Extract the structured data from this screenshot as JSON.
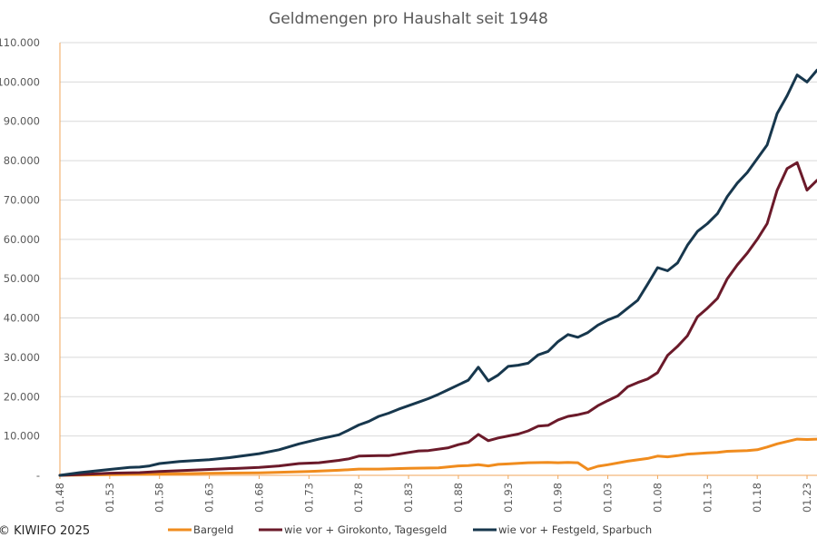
{
  "chart_data": {
    "type": "line",
    "title": "Geldmengen pro Haushalt seit 1948",
    "xlabel": "",
    "ylabel": "",
    "ylim": [
      0,
      110000
    ],
    "y_ticks": [
      0,
      10000,
      20000,
      30000,
      40000,
      50000,
      60000,
      70000,
      80000,
      90000,
      100000,
      110000
    ],
    "y_tick_labels": [
      "-",
      "10.000",
      "20.000",
      "30.000",
      "40.000",
      "50.000",
      "60.000",
      "70.000",
      "80.000",
      "90.000",
      "100.000",
      "110.000"
    ],
    "x_ticks": [
      1948,
      1953,
      1958,
      1963,
      1968,
      1973,
      1978,
      1983,
      1988,
      1993,
      1998,
      2003,
      2008,
      2013,
      2018,
      2023
    ],
    "x_tick_labels": [
      "01.48",
      "01.53",
      "01.58",
      "01.63",
      "01.68",
      "01.73",
      "01.78",
      "01.83",
      "01.88",
      "01.93",
      "01.98",
      "01.03",
      "01.08",
      "01.13",
      "01.18",
      "01.23"
    ],
    "xlim": [
      1948,
      2024
    ],
    "grid": true,
    "legend_position": "bottom",
    "series": [
      {
        "name": "Bargeld",
        "color": "#F08C1E",
        "points": [
          [
            1948,
            0
          ],
          [
            1953,
            150
          ],
          [
            1958,
            350
          ],
          [
            1963,
            500
          ],
          [
            1968,
            650
          ],
          [
            1973,
            1000
          ],
          [
            1976,
            1300
          ],
          [
            1978,
            1600
          ],
          [
            1980,
            1600
          ],
          [
            1983,
            1800
          ],
          [
            1986,
            1900
          ],
          [
            1988,
            2400
          ],
          [
            1989,
            2500
          ],
          [
            1990,
            2700
          ],
          [
            1991,
            2400
          ],
          [
            1992,
            2800
          ],
          [
            1993,
            2900
          ],
          [
            1995,
            3200
          ],
          [
            1997,
            3300
          ],
          [
            1998,
            3200
          ],
          [
            1999,
            3300
          ],
          [
            2000,
            3200
          ],
          [
            2001,
            1500
          ],
          [
            2002,
            2300
          ],
          [
            2003,
            2700
          ],
          [
            2005,
            3600
          ],
          [
            2007,
            4300
          ],
          [
            2008,
            4900
          ],
          [
            2009,
            4700
          ],
          [
            2010,
            5000
          ],
          [
            2011,
            5400
          ],
          [
            2013,
            5700
          ],
          [
            2014,
            5800
          ],
          [
            2015,
            6100
          ],
          [
            2017,
            6300
          ],
          [
            2018,
            6500
          ],
          [
            2019,
            7200
          ],
          [
            2020,
            8000
          ],
          [
            2021,
            8600
          ],
          [
            2022,
            9200
          ],
          [
            2023,
            9100
          ],
          [
            2024,
            9200
          ]
        ]
      },
      {
        "name": "wie vor + Girokonto, Tagesgeld",
        "color": "#6B1A2A",
        "points": [
          [
            1948,
            0
          ],
          [
            1950,
            200
          ],
          [
            1953,
            550
          ],
          [
            1956,
            700
          ],
          [
            1958,
            1000
          ],
          [
            1963,
            1500
          ],
          [
            1966,
            1800
          ],
          [
            1968,
            2000
          ],
          [
            1970,
            2400
          ],
          [
            1972,
            3000
          ],
          [
            1974,
            3200
          ],
          [
            1976,
            3800
          ],
          [
            1977,
            4200
          ],
          [
            1978,
            4900
          ],
          [
            1980,
            5000
          ],
          [
            1981,
            5000
          ],
          [
            1983,
            5800
          ],
          [
            1984,
            6200
          ],
          [
            1985,
            6300
          ],
          [
            1987,
            7000
          ],
          [
            1988,
            7800
          ],
          [
            1989,
            8400
          ],
          [
            1990,
            10400
          ],
          [
            1991,
            8800
          ],
          [
            1992,
            9500
          ],
          [
            1993,
            10000
          ],
          [
            1994,
            10500
          ],
          [
            1995,
            11300
          ],
          [
            1996,
            12500
          ],
          [
            1997,
            12700
          ],
          [
            1998,
            14100
          ],
          [
            1999,
            15000
          ],
          [
            2000,
            15400
          ],
          [
            2001,
            16000
          ],
          [
            2002,
            17700
          ],
          [
            2003,
            19000
          ],
          [
            2004,
            20200
          ],
          [
            2005,
            22500
          ],
          [
            2006,
            23600
          ],
          [
            2007,
            24500
          ],
          [
            2008,
            26100
          ],
          [
            2009,
            30500
          ],
          [
            2010,
            32800
          ],
          [
            2011,
            35500
          ],
          [
            2012,
            40300
          ],
          [
            2013,
            42500
          ],
          [
            2014,
            45000
          ],
          [
            2015,
            50000
          ],
          [
            2016,
            53500
          ],
          [
            2017,
            56500
          ],
          [
            2018,
            60000
          ],
          [
            2019,
            64000
          ],
          [
            2020,
            72500
          ],
          [
            2021,
            78000
          ],
          [
            2022,
            79500
          ],
          [
            2023,
            72500
          ],
          [
            2024,
            75000
          ]
        ]
      },
      {
        "name": "wie vor + Festgeld, Sparbuch",
        "color": "#17374D",
        "points": [
          [
            1948,
            0
          ],
          [
            1950,
            700
          ],
          [
            1953,
            1500
          ],
          [
            1955,
            2000
          ],
          [
            1956,
            2100
          ],
          [
            1957,
            2400
          ],
          [
            1958,
            3000
          ],
          [
            1960,
            3500
          ],
          [
            1963,
            4000
          ],
          [
            1965,
            4500
          ],
          [
            1968,
            5500
          ],
          [
            1970,
            6500
          ],
          [
            1972,
            8000
          ],
          [
            1974,
            9200
          ],
          [
            1976,
            10300
          ],
          [
            1977,
            11500
          ],
          [
            1978,
            12800
          ],
          [
            1979,
            13700
          ],
          [
            1980,
            15000
          ],
          [
            1981,
            15800
          ],
          [
            1982,
            16800
          ],
          [
            1983,
            17700
          ],
          [
            1984,
            18600
          ],
          [
            1985,
            19500
          ],
          [
            1986,
            20600
          ],
          [
            1987,
            21800
          ],
          [
            1988,
            23000
          ],
          [
            1989,
            24200
          ],
          [
            1990,
            27500
          ],
          [
            1991,
            24000
          ],
          [
            1992,
            25500
          ],
          [
            1993,
            27700
          ],
          [
            1994,
            28000
          ],
          [
            1995,
            28500
          ],
          [
            1996,
            30600
          ],
          [
            1997,
            31500
          ],
          [
            1998,
            34000
          ],
          [
            1999,
            35800
          ],
          [
            2000,
            35100
          ],
          [
            2001,
            36300
          ],
          [
            2002,
            38200
          ],
          [
            2003,
            39500
          ],
          [
            2004,
            40500
          ],
          [
            2005,
            42500
          ],
          [
            2006,
            44500
          ],
          [
            2007,
            48600
          ],
          [
            2008,
            52800
          ],
          [
            2009,
            52000
          ],
          [
            2010,
            54000
          ],
          [
            2011,
            58500
          ],
          [
            2012,
            62000
          ],
          [
            2013,
            64000
          ],
          [
            2014,
            66500
          ],
          [
            2015,
            70900
          ],
          [
            2016,
            74300
          ],
          [
            2017,
            77000
          ],
          [
            2018,
            80500
          ],
          [
            2019,
            84000
          ],
          [
            2020,
            92000
          ],
          [
            2021,
            96500
          ],
          [
            2022,
            101800
          ],
          [
            2023,
            100000
          ],
          [
            2024,
            103000
          ]
        ]
      }
    ]
  },
  "footer": {
    "credit": "© KIWIFO 2025"
  }
}
